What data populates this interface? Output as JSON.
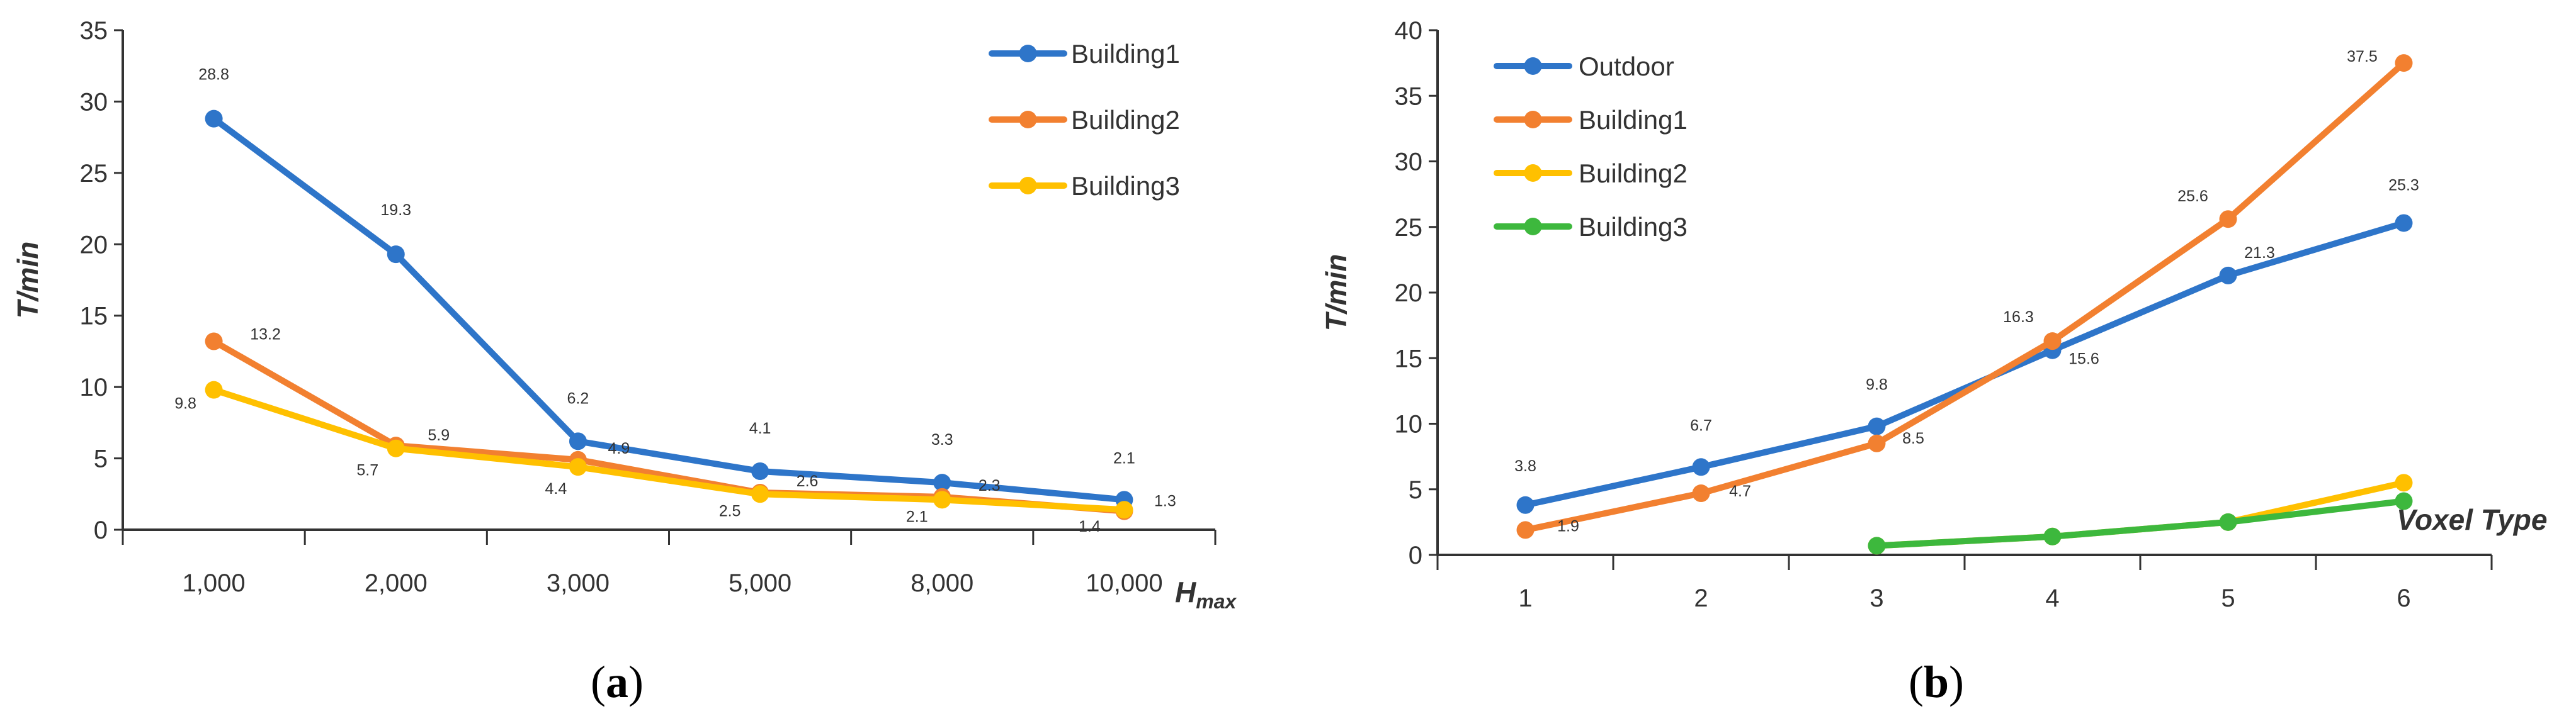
{
  "chart_data": [
    {
      "type": "line",
      "panel_label": "a",
      "title": "",
      "ylabel": "T/min",
      "xlabel": "H",
      "xlabel_sub": "max",
      "categories": [
        "1,000",
        "2,000",
        "3,000",
        "5,000",
        "8,000",
        "10,000"
      ],
      "ylim": [
        0,
        35
      ],
      "yticks": [
        "0",
        "5",
        "10",
        "15",
        "20",
        "25",
        "30",
        "35"
      ],
      "legend_position": "top-right",
      "series": [
        {
          "name": "Building1",
          "color": "#2E75C9",
          "values": [
            28.8,
            19.3,
            6.2,
            4.1,
            3.3,
            2.1
          ],
          "labels": [
            "28.8",
            "19.3",
            "6.2",
            "4.1",
            "3.3",
            "2.1"
          ]
        },
        {
          "name": "Building2",
          "color": "#F28030",
          "values": [
            13.2,
            5.9,
            4.9,
            2.6,
            2.3,
            1.3
          ],
          "labels": [
            "13.2",
            "5.9",
            "4.9",
            "2.6",
            "2.3",
            "1.3"
          ]
        },
        {
          "name": "Building3",
          "color": "#FFC000",
          "values": [
            9.8,
            5.7,
            4.4,
            2.5,
            2.1,
            1.4
          ],
          "labels": [
            "9.8",
            "5.7",
            "4.4",
            "2.5",
            "2.1",
            "1.4"
          ]
        }
      ]
    },
    {
      "type": "line",
      "panel_label": "b",
      "title": "",
      "ylabel": "T/min",
      "xlabel": "Voxel Type",
      "categories": [
        "1",
        "2",
        "3",
        "4",
        "5",
        "6"
      ],
      "ylim": [
        0,
        40
      ],
      "yticks": [
        "0",
        "5",
        "10",
        "15",
        "20",
        "25",
        "30",
        "35",
        "40"
      ],
      "legend_position": "top-left",
      "series": [
        {
          "name": "Outdoor",
          "color": "#2E75C9",
          "values": [
            3.8,
            6.7,
            9.8,
            15.6,
            21.3,
            25.3
          ],
          "labels": [
            "3.8",
            "6.7",
            "9.8",
            "15.6",
            "21.3",
            "25.3"
          ]
        },
        {
          "name": "Building1",
          "color": "#F28030",
          "values": [
            1.9,
            4.7,
            8.5,
            16.3,
            25.6,
            37.5
          ],
          "labels": [
            "1.9",
            "4.7",
            "8.5",
            "16.3",
            "25.6",
            "37.5"
          ]
        },
        {
          "name": "Building2",
          "color": "#FFC000",
          "values": [
            null,
            null,
            0.7,
            1.4,
            2.5,
            5.5
          ],
          "labels": []
        },
        {
          "name": "Building3",
          "color": "#3DB83D",
          "values": [
            null,
            null,
            0.7,
            1.4,
            2.5,
            4.1
          ],
          "labels": []
        }
      ]
    }
  ]
}
